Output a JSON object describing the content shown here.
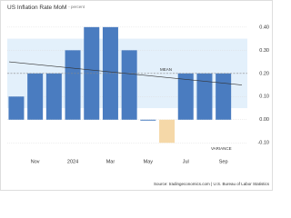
{
  "chart_data": {
    "type": "bar",
    "title": "US Inflation Rate MoM",
    "subtitle": "- percent",
    "categories": [
      null,
      "Nov",
      null,
      "2024",
      null,
      "Mar",
      null,
      "May",
      null,
      "Jul",
      null,
      "Sep"
    ],
    "values": [
      0.1,
      0.2,
      0.2,
      0.3,
      0.4,
      0.4,
      0.3,
      0.0,
      -0.1,
      0.2,
      0.2,
      0.2
    ],
    "color": "#4a7cc0",
    "negative_color": "#f5d8a8",
    "ylim": [
      -0.15,
      0.47
    ],
    "yticks": [
      {
        "value": -0.1,
        "label": "-0.10"
      },
      {
        "value": 0,
        "label": "0.00"
      },
      {
        "value": 0.1,
        "label": "0.10"
      },
      {
        "value": 0.2,
        "label": "0.20"
      },
      {
        "value": 0.3,
        "label": "0.30"
      },
      {
        "value": 0.4,
        "label": "0.40"
      }
    ],
    "grid": true,
    "mean": 0.2,
    "mean_label": "MEAN",
    "variance_band": [
      0.05,
      0.35
    ],
    "variance_label": "VARIANCE",
    "trend": [
      0.25,
      0.15
    ],
    "source": "Source: tradingeconomics.com | U.S. Bureau of Labor Statistics"
  }
}
